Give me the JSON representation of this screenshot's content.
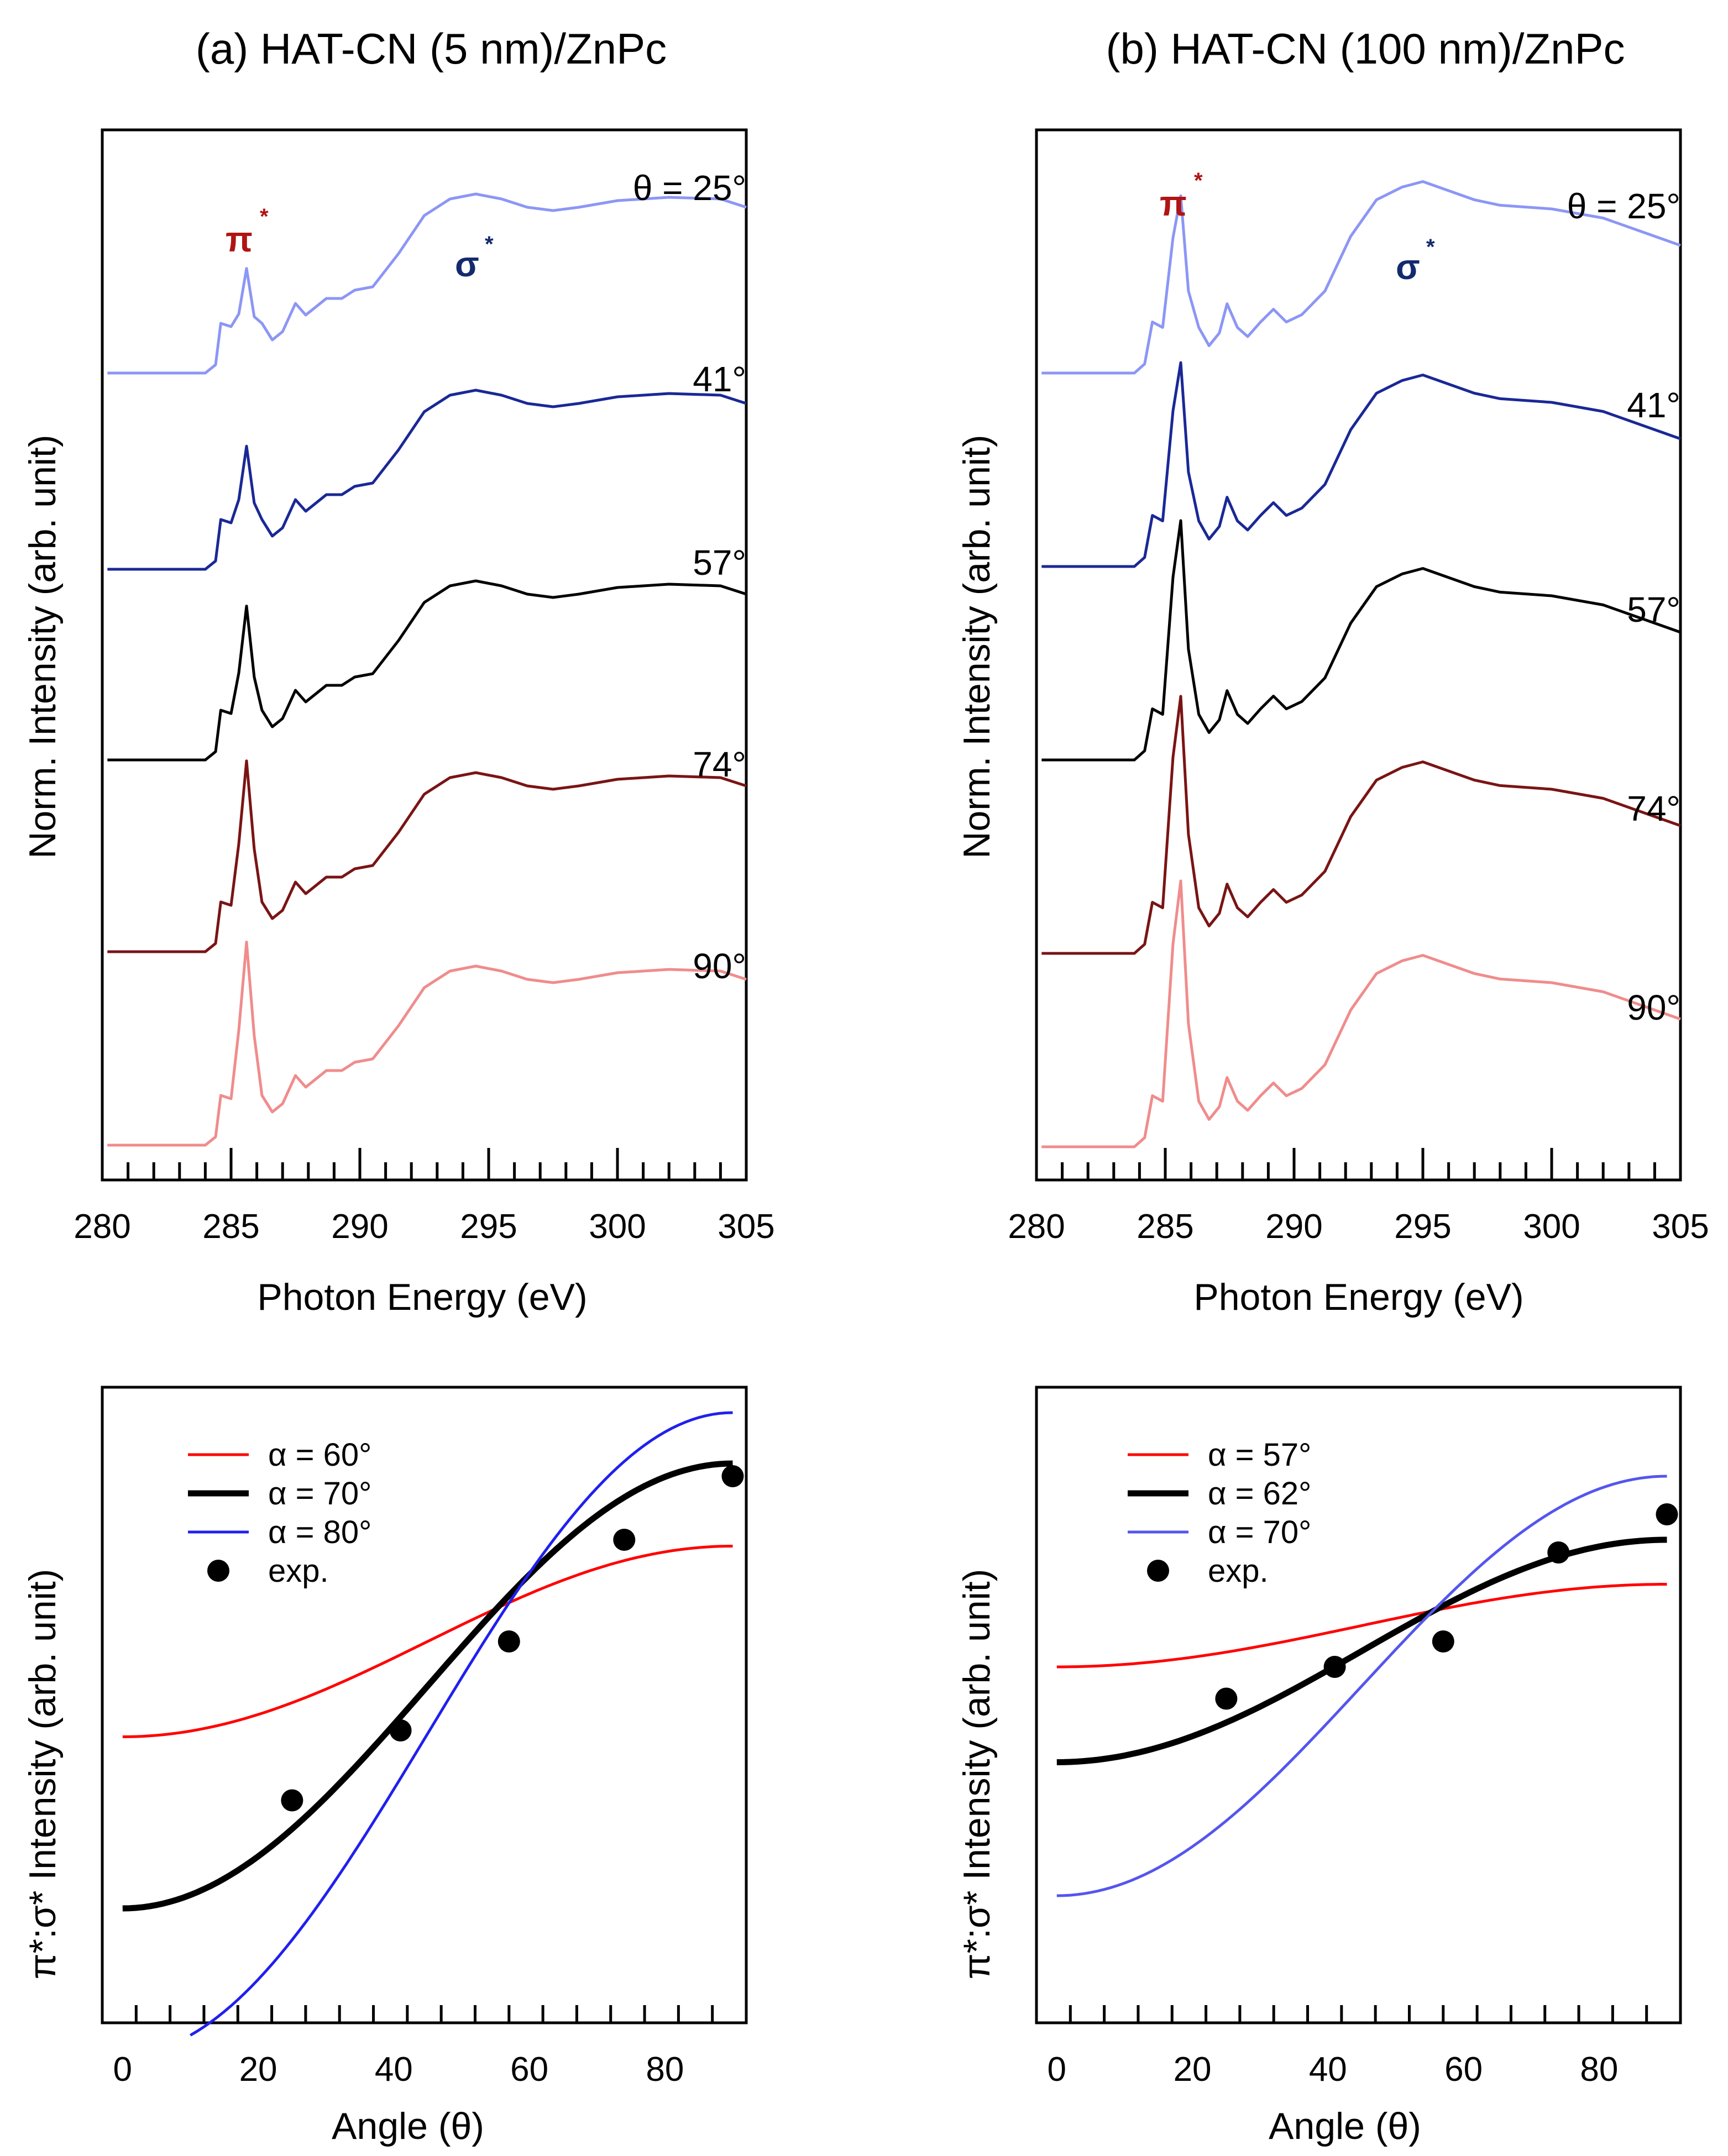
{
  "chart_data": [
    {
      "type": "line",
      "panel": "a",
      "title": "(a) HAT-CN (5 nm)/ZnPc",
      "xlabel": "Photon Energy (eV)",
      "ylabel": "Norm. Intensity (arb. unit)",
      "xlim": [
        280,
        305
      ],
      "xticks": [
        "280",
        "285",
        "290",
        "295",
        "300",
        "305"
      ],
      "peak_labels": {
        "pi": "π",
        "sigma": "σ",
        "star": "*"
      },
      "series": [
        {
          "name": "θ  = 25°",
          "color": "#8c96f5",
          "amp": 1.0,
          "pi_scale": 0.85,
          "x": [
            280.2,
            284.0,
            284.4,
            284.6,
            285.0,
            285.3,
            285.6,
            285.9,
            286.2,
            286.6,
            287.0,
            287.5,
            287.9,
            288.3,
            288.7,
            289.3,
            289.8,
            290.5,
            291.5,
            292.5,
            293.5,
            294.5,
            295.5,
            296.5,
            297.5,
            298.5,
            300,
            302,
            304,
            305
          ],
          "y": [
            0,
            0,
            0.05,
            0.3,
            0.28,
            0.42,
            0.55,
            0.4,
            0.3,
            0.2,
            0.25,
            0.42,
            0.35,
            0.4,
            0.45,
            0.45,
            0.5,
            0.52,
            0.72,
            0.95,
            1.05,
            1.08,
            1.05,
            1.0,
            0.98,
            1.0,
            1.04,
            1.06,
            1.05,
            1.0
          ]
        },
        {
          "name": "41°",
          "color": "#1a2896",
          "amp": 1.0,
          "pi_scale": 1.0,
          "x": [
            280.2,
            284.0,
            284.4,
            284.6,
            285.0,
            285.3,
            285.6,
            285.9,
            286.2,
            286.6,
            287.0,
            287.5,
            287.9,
            288.3,
            288.7,
            289.3,
            289.8,
            290.5,
            291.5,
            292.5,
            293.5,
            294.5,
            295.5,
            296.5,
            297.5,
            298.5,
            300,
            302,
            304,
            305
          ],
          "y": [
            0,
            0,
            0.05,
            0.3,
            0.28,
            0.42,
            0.55,
            0.4,
            0.3,
            0.2,
            0.25,
            0.42,
            0.35,
            0.4,
            0.45,
            0.45,
            0.5,
            0.52,
            0.72,
            0.95,
            1.05,
            1.08,
            1.05,
            1.0,
            0.98,
            1.0,
            1.04,
            1.06,
            1.05,
            1.0
          ]
        },
        {
          "name": "57°",
          "color": "#000000",
          "amp": 1.0,
          "pi_scale": 1.25,
          "x": [
            280.2,
            284.0,
            284.4,
            284.6,
            285.0,
            285.3,
            285.6,
            285.9,
            286.2,
            286.6,
            287.0,
            287.5,
            287.9,
            288.3,
            288.7,
            289.3,
            289.8,
            290.5,
            291.5,
            292.5,
            293.5,
            294.5,
            295.5,
            296.5,
            297.5,
            298.5,
            300,
            302,
            304,
            305
          ],
          "y": [
            0,
            0,
            0.05,
            0.3,
            0.28,
            0.42,
            0.55,
            0.4,
            0.3,
            0.2,
            0.25,
            0.42,
            0.35,
            0.4,
            0.45,
            0.45,
            0.5,
            0.52,
            0.72,
            0.95,
            1.05,
            1.08,
            1.05,
            1.0,
            0.98,
            1.0,
            1.04,
            1.06,
            1.05,
            1.0
          ]
        },
        {
          "name": "74°",
          "color": "#7a1414",
          "amp": 1.0,
          "pi_scale": 1.55,
          "x": [
            280.2,
            284.0,
            284.4,
            284.6,
            285.0,
            285.3,
            285.6,
            285.9,
            286.2,
            286.6,
            287.0,
            287.5,
            287.9,
            288.3,
            288.7,
            289.3,
            289.8,
            290.5,
            291.5,
            292.5,
            293.5,
            294.5,
            295.5,
            296.5,
            297.5,
            298.5,
            300,
            302,
            304,
            305
          ],
          "y": [
            0,
            0,
            0.05,
            0.3,
            0.28,
            0.42,
            0.55,
            0.4,
            0.3,
            0.2,
            0.25,
            0.42,
            0.35,
            0.4,
            0.45,
            0.45,
            0.5,
            0.52,
            0.72,
            0.95,
            1.05,
            1.08,
            1.05,
            1.0,
            0.98,
            1.0,
            1.04,
            1.06,
            1.05,
            1.0
          ]
        },
        {
          "name": "90°",
          "color": "#f08c8c",
          "amp": 1.0,
          "pi_scale": 1.65,
          "x": [
            280.2,
            284.0,
            284.4,
            284.6,
            285.0,
            285.3,
            285.6,
            285.9,
            286.2,
            286.6,
            287.0,
            287.5,
            287.9,
            288.3,
            288.7,
            289.3,
            289.8,
            290.5,
            291.5,
            292.5,
            293.5,
            294.5,
            295.5,
            296.5,
            297.5,
            298.5,
            300,
            302,
            304,
            305
          ],
          "y": [
            0,
            0,
            0.05,
            0.3,
            0.28,
            0.42,
            0.55,
            0.4,
            0.3,
            0.2,
            0.25,
            0.42,
            0.35,
            0.4,
            0.45,
            0.45,
            0.5,
            0.52,
            0.72,
            0.95,
            1.05,
            1.08,
            1.05,
            1.0,
            0.98,
            1.0,
            1.04,
            1.06,
            1.05,
            1.0
          ]
        }
      ]
    },
    {
      "type": "line",
      "panel": "b",
      "title": "(b) HAT-CN (100 nm)/ZnPc",
      "xlabel": "Photon Energy (eV)",
      "ylabel": "Norm. Intensity (arb. unit)",
      "xlim": [
        280,
        305
      ],
      "xticks": [
        "280",
        "285",
        "290",
        "295",
        "300",
        "305"
      ],
      "peak_labels": {
        "pi": "π",
        "sigma": "σ",
        "star": "*"
      },
      "series": [
        {
          "name": "θ  = 25°",
          "color": "#8c96f5",
          "amp": 1.0,
          "pi_scale": 1.0,
          "x": [
            280.2,
            283.8,
            284.2,
            284.5,
            284.9,
            285.3,
            285.6,
            285.9,
            286.3,
            286.7,
            287.1,
            287.4,
            287.8,
            288.2,
            288.7,
            289.2,
            289.7,
            290.3,
            291.2,
            292.2,
            293.2,
            294.2,
            295.0,
            296.0,
            297.0,
            298.0,
            300,
            302,
            304,
            305
          ],
          "y": [
            0,
            0,
            0.05,
            0.28,
            0.25,
            0.55,
            0.72,
            0.45,
            0.25,
            0.15,
            0.22,
            0.38,
            0.25,
            0.2,
            0.28,
            0.35,
            0.28,
            0.32,
            0.45,
            0.75,
            0.95,
            1.02,
            1.05,
            1.0,
            0.95,
            0.92,
            0.9,
            0.85,
            0.75,
            0.7
          ]
        },
        {
          "name": "41°",
          "color": "#1a2896",
          "amp": 1.0,
          "pi_scale": 1.15,
          "x": [
            280.2,
            283.8,
            284.2,
            284.5,
            284.9,
            285.3,
            285.6,
            285.9,
            286.3,
            286.7,
            287.1,
            287.4,
            287.8,
            288.2,
            288.7,
            289.2,
            289.7,
            290.3,
            291.2,
            292.2,
            293.2,
            294.2,
            295.0,
            296.0,
            297.0,
            298.0,
            300,
            302,
            304,
            305
          ],
          "y": [
            0,
            0,
            0.05,
            0.28,
            0.25,
            0.55,
            0.72,
            0.45,
            0.25,
            0.15,
            0.22,
            0.38,
            0.25,
            0.2,
            0.28,
            0.35,
            0.28,
            0.32,
            0.45,
            0.75,
            0.95,
            1.02,
            1.05,
            1.0,
            0.95,
            0.92,
            0.9,
            0.85,
            0.75,
            0.7
          ]
        },
        {
          "name": "57°",
          "color": "#000000",
          "amp": 1.0,
          "pi_scale": 1.35,
          "x": [
            280.2,
            283.8,
            284.2,
            284.5,
            284.9,
            285.3,
            285.6,
            285.9,
            286.3,
            286.7,
            287.1,
            287.4,
            287.8,
            288.2,
            288.7,
            289.2,
            289.7,
            290.3,
            291.2,
            292.2,
            293.2,
            294.2,
            295.0,
            296.0,
            297.0,
            298.0,
            300,
            302,
            304,
            305
          ],
          "y": [
            0,
            0,
            0.05,
            0.28,
            0.25,
            0.55,
            0.72,
            0.45,
            0.25,
            0.15,
            0.22,
            0.38,
            0.25,
            0.2,
            0.28,
            0.35,
            0.28,
            0.32,
            0.45,
            0.75,
            0.95,
            1.02,
            1.05,
            1.0,
            0.95,
            0.92,
            0.9,
            0.85,
            0.75,
            0.7
          ]
        },
        {
          "name": "74°",
          "color": "#7a1414",
          "amp": 1.0,
          "pi_scale": 1.45,
          "x": [
            280.2,
            283.8,
            284.2,
            284.5,
            284.9,
            285.3,
            285.6,
            285.9,
            286.3,
            286.7,
            287.1,
            287.4,
            287.8,
            288.2,
            288.7,
            289.2,
            289.7,
            290.3,
            291.2,
            292.2,
            293.2,
            294.2,
            295.0,
            296.0,
            297.0,
            298.0,
            300,
            302,
            304,
            305
          ],
          "y": [
            0,
            0,
            0.05,
            0.28,
            0.25,
            0.55,
            0.72,
            0.45,
            0.25,
            0.15,
            0.22,
            0.38,
            0.25,
            0.2,
            0.28,
            0.35,
            0.28,
            0.32,
            0.45,
            0.75,
            0.95,
            1.02,
            1.05,
            1.0,
            0.95,
            0.92,
            0.9,
            0.85,
            0.75,
            0.7
          ]
        },
        {
          "name": "90°",
          "color": "#f08c8c",
          "amp": 1.0,
          "pi_scale": 1.5,
          "x": [
            280.2,
            283.8,
            284.2,
            284.5,
            284.9,
            285.3,
            285.6,
            285.9,
            286.3,
            286.7,
            287.1,
            287.4,
            287.8,
            288.2,
            288.7,
            289.2,
            289.7,
            290.3,
            291.2,
            292.2,
            293.2,
            294.2,
            295.0,
            296.0,
            297.0,
            298.0,
            300,
            302,
            304,
            305
          ],
          "y": [
            0,
            0,
            0.05,
            0.28,
            0.25,
            0.55,
            0.72,
            0.45,
            0.25,
            0.15,
            0.22,
            0.38,
            0.25,
            0.2,
            0.28,
            0.35,
            0.28,
            0.32,
            0.45,
            0.75,
            0.95,
            1.02,
            1.05,
            1.0,
            0.95,
            0.92,
            0.9,
            0.85,
            0.75,
            0.7
          ]
        }
      ]
    },
    {
      "type": "line",
      "panel": "c",
      "xlabel": "Angle (θ)",
      "ylabel": "π*:σ* Intensity (arb. unit)",
      "xlim": [
        -3,
        92
      ],
      "ylim": [
        0.0,
        1.0
      ],
      "xticks": [
        "0",
        "20",
        "40",
        "60",
        "80"
      ],
      "series": [
        {
          "name": "α = 60°",
          "color": "#ff0000",
          "width": "thin",
          "x_start": 0,
          "y0": 0.45,
          "y90": 0.75
        },
        {
          "name": "α = 70°",
          "color": "#000000",
          "width": "thick",
          "x_start": 0,
          "y0": 0.18,
          "y90": 0.88
        },
        {
          "name": "α = 80°",
          "color": "#2020ee",
          "width": "thin",
          "x_start": 10,
          "y0": -0.05,
          "y90": 0.96
        }
      ],
      "points": {
        "name": "exp.",
        "x": [
          25,
          41,
          57,
          74,
          90
        ],
        "y": [
          0.35,
          0.46,
          0.6,
          0.76,
          0.86
        ]
      }
    },
    {
      "type": "line",
      "panel": "d",
      "xlabel": "Angle (θ)",
      "ylabel": "π*:σ* Intensity (arb. unit)",
      "xlim": [
        -3,
        92
      ],
      "ylim": [
        0.0,
        1.0
      ],
      "xticks": [
        "0",
        "20",
        "40",
        "60",
        "80"
      ],
      "series": [
        {
          "name": "α = 57°",
          "color": "#ff0000",
          "width": "thin",
          "x_start": 0,
          "y0": 0.56,
          "y90": 0.69
        },
        {
          "name": "α = 62°",
          "color": "#000000",
          "width": "thick",
          "x_start": 0,
          "y0": 0.41,
          "y90": 0.76
        },
        {
          "name": "α = 70°",
          "color": "#5555ee",
          "width": "thin",
          "x_start": 0,
          "y0": 0.2,
          "y90": 0.86
        }
      ],
      "points": {
        "name": "exp.",
        "x": [
          25,
          41,
          57,
          74,
          90
        ],
        "y": [
          0.51,
          0.56,
          0.6,
          0.74,
          0.8
        ]
      }
    }
  ]
}
